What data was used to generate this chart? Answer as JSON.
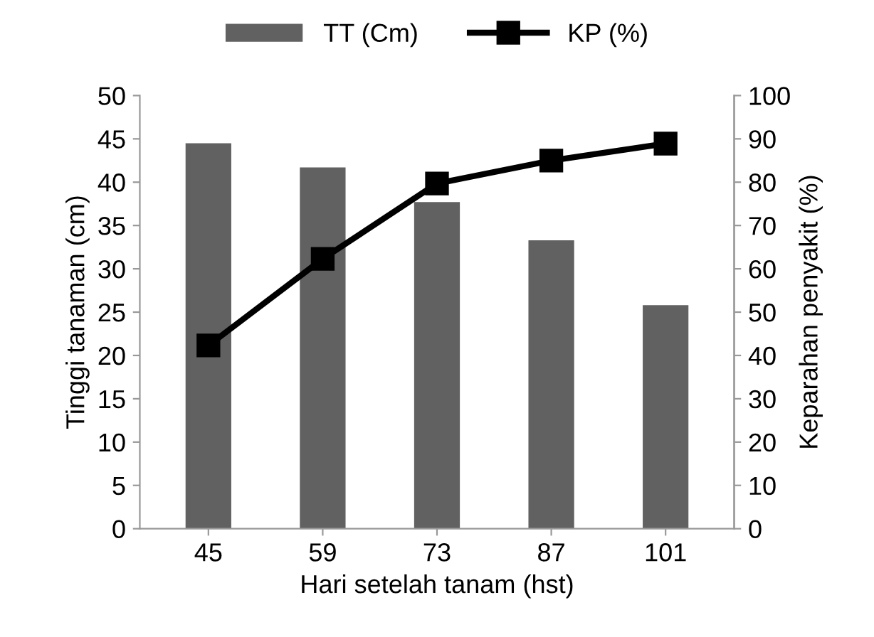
{
  "chart_data": {
    "type": "bar",
    "xlabel": "Hari setelah tanam (hst)",
    "ylabel": "Tinggi tanaman (cm)",
    "y2label": "Keparahan penyakit (%)",
    "categories": [
      "45",
      "59",
      "73",
      "87",
      "101"
    ],
    "series": [
      {
        "name": "TT (Cm)",
        "color": "#616161",
        "values": [
          44.5,
          41.7,
          37.7,
          33.3,
          25.8
        ]
      },
      {
        "name": "KP (%)",
        "type": "line",
        "axis": "y2",
        "color": "#000000",
        "marker": "square",
        "values": [
          42.3,
          62.3,
          79.7,
          85.0,
          88.9
        ]
      }
    ],
    "ylim": [
      0,
      50
    ],
    "yticks": [
      0,
      5,
      10,
      15,
      20,
      25,
      30,
      35,
      40,
      45,
      50
    ],
    "y2lim": [
      0,
      100
    ],
    "y2ticks": [
      0,
      10,
      20,
      30,
      40,
      50,
      60,
      70,
      80,
      90,
      100
    ],
    "grid": false,
    "legend": "top"
  }
}
